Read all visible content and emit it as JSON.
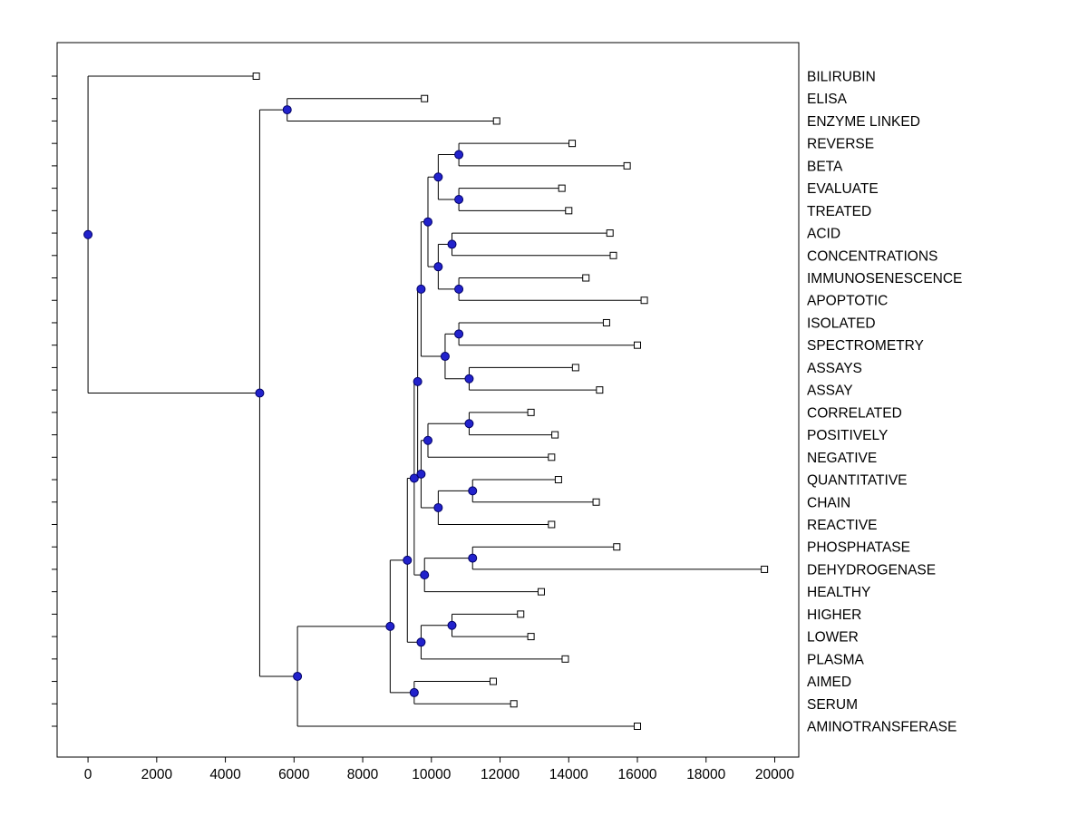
{
  "chart_data": {
    "type": "dendrogram",
    "title": "",
    "xlabel": "",
    "ylabel": "",
    "grid": false,
    "legend": null,
    "x_range": [
      -900,
      20700
    ],
    "x_ticks": [
      0,
      2000,
      4000,
      6000,
      8000,
      10000,
      12000,
      14000,
      16000,
      18000,
      20000
    ],
    "colors": {
      "branch": "#000000",
      "internal_node_fill": "#2222cc",
      "internal_node_edge": "#000066",
      "leaf_marker_fill": "#ffffff",
      "leaf_marker_edge": "#000000",
      "text": "#000000",
      "background": "#ffffff"
    },
    "leaves": [
      {
        "label": "BILIRUBIN",
        "x": 4900
      },
      {
        "label": "ELISA",
        "x": 9800
      },
      {
        "label": "ENZYME LINKED",
        "x": 11900
      },
      {
        "label": "REVERSE",
        "x": 14100
      },
      {
        "label": "BETA",
        "x": 15700
      },
      {
        "label": "EVALUATE",
        "x": 13800
      },
      {
        "label": "TREATED",
        "x": 14000
      },
      {
        "label": "ACID",
        "x": 15200
      },
      {
        "label": "CONCENTRATIONS",
        "x": 15300
      },
      {
        "label": "IMMUNOSENESCENCE",
        "x": 14500
      },
      {
        "label": "APOPTOTIC",
        "x": 16200
      },
      {
        "label": "ISOLATED",
        "x": 15100
      },
      {
        "label": "SPECTROMETRY",
        "x": 16000
      },
      {
        "label": "ASSAYS",
        "x": 14200
      },
      {
        "label": "ASSAY",
        "x": 14900
      },
      {
        "label": "CORRELATED",
        "x": 12900
      },
      {
        "label": "POSITIVELY",
        "x": 13600
      },
      {
        "label": "NEGATIVE",
        "x": 13500
      },
      {
        "label": "QUANTITATIVE",
        "x": 13700
      },
      {
        "label": "CHAIN",
        "x": 14800
      },
      {
        "label": "REACTIVE",
        "x": 13500
      },
      {
        "label": "PHOSPHATASE",
        "x": 15400
      },
      {
        "label": "DEHYDROGENASE",
        "x": 19700
      },
      {
        "label": "HEALTHY",
        "x": 13200
      },
      {
        "label": "HIGHER",
        "x": 12600
      },
      {
        "label": "LOWER",
        "x": 12900
      },
      {
        "label": "PLASMA",
        "x": 13900
      },
      {
        "label": "AIMED",
        "x": 11800
      },
      {
        "label": "SERUM",
        "x": 12400
      },
      {
        "label": "AMINOTRANSFERASE",
        "x": 16000
      }
    ],
    "nodes": [
      {
        "id": "root",
        "x": 0,
        "children": [
          "BILIRUBIN",
          "main"
        ]
      },
      {
        "id": "main",
        "x": 5000,
        "children": [
          "elisa-enzyme",
          "lower-main"
        ]
      },
      {
        "id": "elisa-enzyme",
        "x": 5800,
        "children": [
          "ELISA",
          "ENZYME LINKED"
        ]
      },
      {
        "id": "lower-main",
        "x": 6100,
        "children": [
          "core",
          "AMINOTRANSFERASE"
        ]
      },
      {
        "id": "core",
        "x": 8800,
        "children": [
          "core-upper",
          "aimed-serum"
        ]
      },
      {
        "id": "aimed-serum",
        "x": 9500,
        "children": [
          "AIMED",
          "SERUM"
        ]
      },
      {
        "id": "core-upper",
        "x": 9300,
        "children": [
          "core-mid",
          "higher-lower-plasma"
        ]
      },
      {
        "id": "higher-lower-plasma",
        "x": 9700,
        "children": [
          "higher-lower",
          "PLASMA"
        ]
      },
      {
        "id": "higher-lower",
        "x": 10600,
        "children": [
          "HIGHER",
          "LOWER"
        ]
      },
      {
        "id": "core-mid",
        "x": 9500,
        "children": [
          "upper-mid",
          "phos-dehy-healthy"
        ]
      },
      {
        "id": "phos-dehy-healthy",
        "x": 9800,
        "children": [
          "phos-dehy",
          "HEALTHY"
        ]
      },
      {
        "id": "phos-dehy",
        "x": 11200,
        "children": [
          "PHOSPHATASE",
          "DEHYDROGENASE"
        ]
      },
      {
        "id": "upper-mid",
        "x": 9600,
        "children": [
          "upper",
          "mid"
        ]
      },
      {
        "id": "upper",
        "x": 9700,
        "children": [
          "top-group",
          "iso-spec-assays"
        ]
      },
      {
        "id": "top-group",
        "x": 9900,
        "children": [
          "rev-beta-eval-treat",
          "acid-conc-immuno-apop"
        ]
      },
      {
        "id": "rev-beta-eval-treat",
        "x": 10200,
        "children": [
          "rev-beta",
          "eval-treat"
        ]
      },
      {
        "id": "rev-beta",
        "x": 10800,
        "children": [
          "REVERSE",
          "BETA"
        ]
      },
      {
        "id": "eval-treat",
        "x": 10800,
        "children": [
          "EVALUATE",
          "TREATED"
        ]
      },
      {
        "id": "acid-conc-immuno-apop",
        "x": 10200,
        "children": [
          "acid-conc",
          "immuno-apop"
        ]
      },
      {
        "id": "acid-conc",
        "x": 10600,
        "children": [
          "ACID",
          "CONCENTRATIONS"
        ]
      },
      {
        "id": "immuno-apop",
        "x": 10800,
        "children": [
          "IMMUNOSENESCENCE",
          "APOPTOTIC"
        ]
      },
      {
        "id": "iso-spec-assays",
        "x": 10400,
        "children": [
          "iso-spec",
          "assays-assay"
        ]
      },
      {
        "id": "iso-spec",
        "x": 10800,
        "children": [
          "ISOLATED",
          "SPECTROMETRY"
        ]
      },
      {
        "id": "assays-assay",
        "x": 11100,
        "children": [
          "ASSAYS",
          "ASSAY"
        ]
      },
      {
        "id": "mid",
        "x": 9700,
        "children": [
          "corr-pos-neg",
          "quant-chain-react"
        ]
      },
      {
        "id": "corr-pos-neg",
        "x": 9900,
        "children": [
          "corr-pos",
          "NEGATIVE"
        ]
      },
      {
        "id": "corr-pos",
        "x": 11100,
        "children": [
          "CORRELATED",
          "POSITIVELY"
        ]
      },
      {
        "id": "quant-chain-react",
        "x": 10200,
        "children": [
          "quant-chain",
          "REACTIVE"
        ]
      },
      {
        "id": "quant-chain",
        "x": 11200,
        "children": [
          "QUANTITATIVE",
          "CHAIN"
        ]
      }
    ]
  }
}
